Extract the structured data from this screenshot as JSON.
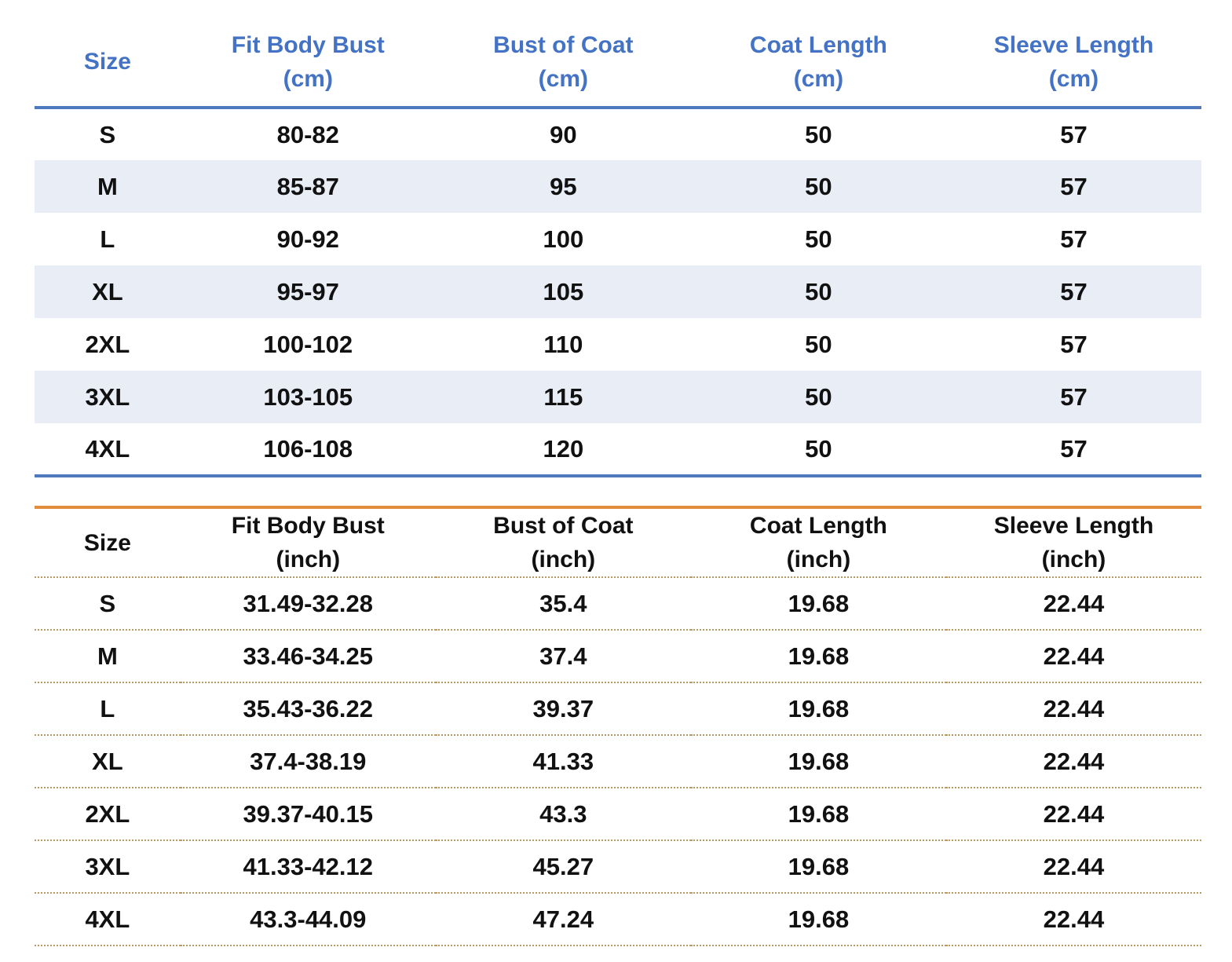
{
  "colors": {
    "header_text_blue": "#4472C4",
    "line_blue": "#4E79BC",
    "row_shade_blue": "#E9EDF6",
    "line_orange": "#E28C3D",
    "dotted_line_tan": "#B89A62",
    "text_dark": "#111111",
    "background": "#FFFFFF"
  },
  "tables": [
    {
      "name": "size-chart-cm",
      "theme": "blue",
      "columns": [
        {
          "label": "Size",
          "unit": ""
        },
        {
          "label": "Fit Body Bust",
          "unit": "(cm)"
        },
        {
          "label": "Bust of Coat",
          "unit": "(cm)"
        },
        {
          "label": "Coat Length",
          "unit": "(cm)"
        },
        {
          "label": "Sleeve Length",
          "unit": "(cm)"
        }
      ],
      "rows": [
        [
          "S",
          "80-82",
          "90",
          "50",
          "57"
        ],
        [
          "M",
          "85-87",
          "95",
          "50",
          "57"
        ],
        [
          "L",
          "90-92",
          "100",
          "50",
          "57"
        ],
        [
          "XL",
          "95-97",
          "105",
          "50",
          "57"
        ],
        [
          "2XL",
          "100-102",
          "110",
          "50",
          "57"
        ],
        [
          "3XL",
          "103-105",
          "115",
          "50",
          "57"
        ],
        [
          "4XL",
          "106-108",
          "120",
          "50",
          "57"
        ]
      ],
      "shaded_row_indices": [
        1,
        3,
        5
      ]
    },
    {
      "name": "size-chart-inch",
      "theme": "orange",
      "columns": [
        {
          "label": "Size",
          "unit": ""
        },
        {
          "label": "Fit Body Bust",
          "unit": "(inch)"
        },
        {
          "label": "Bust of Coat",
          "unit": "(inch)"
        },
        {
          "label": "Coat Length",
          "unit": "(inch)"
        },
        {
          "label": "Sleeve Length",
          "unit": "(inch)"
        }
      ],
      "rows": [
        [
          "S",
          "31.49-32.28",
          "35.4",
          "19.68",
          "22.44"
        ],
        [
          "M",
          "33.46-34.25",
          "37.4",
          "19.68",
          "22.44"
        ],
        [
          "L",
          "35.43-36.22",
          "39.37",
          "19.68",
          "22.44"
        ],
        [
          "XL",
          "37.4-38.19",
          "41.33",
          "19.68",
          "22.44"
        ],
        [
          "2XL",
          "39.37-40.15",
          "43.3",
          "19.68",
          "22.44"
        ],
        [
          "3XL",
          "41.33-42.12",
          "45.27",
          "19.68",
          "22.44"
        ],
        [
          "4XL",
          "43.3-44.09",
          "47.24",
          "19.68",
          "22.44"
        ]
      ],
      "shaded_row_indices": []
    }
  ],
  "chart_data": [
    {
      "type": "table",
      "title": "Size chart (cm)",
      "columns": [
        "Size",
        "Fit Body Bust (cm)",
        "Bust of Coat (cm)",
        "Coat Length (cm)",
        "Sleeve Length (cm)"
      ],
      "rows": [
        [
          "S",
          "80-82",
          90,
          50,
          57
        ],
        [
          "M",
          "85-87",
          95,
          50,
          57
        ],
        [
          "L",
          "90-92",
          100,
          50,
          57
        ],
        [
          "XL",
          "95-97",
          105,
          50,
          57
        ],
        [
          "2XL",
          "100-102",
          110,
          50,
          57
        ],
        [
          "3XL",
          "103-105",
          115,
          50,
          57
        ],
        [
          "4XL",
          "106-108",
          120,
          50,
          57
        ]
      ]
    },
    {
      "type": "table",
      "title": "Size chart (inch)",
      "columns": [
        "Size",
        "Fit Body Bust (inch)",
        "Bust of Coat (inch)",
        "Coat Length (inch)",
        "Sleeve Length (inch)"
      ],
      "rows": [
        [
          "S",
          "31.49-32.28",
          35.4,
          19.68,
          22.44
        ],
        [
          "M",
          "33.46-34.25",
          37.4,
          19.68,
          22.44
        ],
        [
          "L",
          "35.43-36.22",
          39.37,
          19.68,
          22.44
        ],
        [
          "XL",
          "37.4-38.19",
          41.33,
          19.68,
          22.44
        ],
        [
          "2XL",
          "39.37-40.15",
          43.3,
          19.68,
          22.44
        ],
        [
          "3XL",
          "41.33-42.12",
          45.27,
          19.68,
          22.44
        ],
        [
          "4XL",
          "43.3-44.09",
          47.24,
          19.68,
          22.44
        ]
      ]
    }
  ]
}
